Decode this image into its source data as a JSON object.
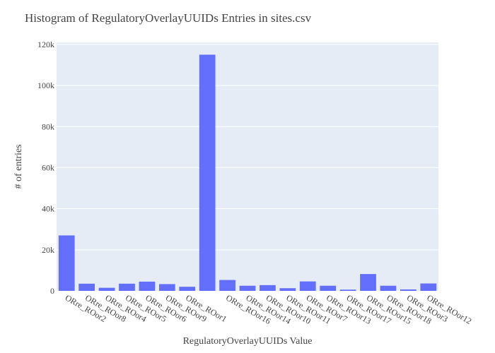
{
  "chart_data": {
    "type": "bar",
    "title": "Histogram of RegulatoryOverlayUUIDs Entries in sites.csv",
    "x_label": "RegulatoryOverlayUUIDs Value",
    "y_label": "# of entries",
    "categories": [
      "ORre_ROor2",
      "ORre_ROor8",
      "ORre_ROor4",
      "ORre_ROor5",
      "ORre_ROor6",
      "ORre_ROor9",
      "ORre_ROor1",
      null,
      "ORre_ROor16",
      "ORre_ROor14",
      "ORre_ROor10",
      "ORre_ROor11",
      "ORre_ROor7",
      "ORre_ROor13",
      "ORre_ROor17",
      "ORre_ROor15",
      "ORre_ROor18",
      "ORre_ROor3",
      "ORre_ROor12"
    ],
    "values": [
      27000,
      3500,
      1500,
      3500,
      4500,
      3300,
      2000,
      115000,
      5300,
      2500,
      2800,
      1300,
      4600,
      2500,
      600,
      8200,
      2500,
      700,
      3600
    ],
    "color": "#636efa",
    "ylim": [
      0,
      121000
    ],
    "yticks": [
      0,
      {
        "value": 20000,
        "label": "20k"
      },
      {
        "value": 40000,
        "label": "40k"
      },
      {
        "value": 60000,
        "label": "60k"
      },
      {
        "value": 80000,
        "label": "80k"
      },
      {
        "value": 100000,
        "label": "100k"
      },
      {
        "value": 120000,
        "label": "120k"
      }
    ],
    "grid": true
  }
}
